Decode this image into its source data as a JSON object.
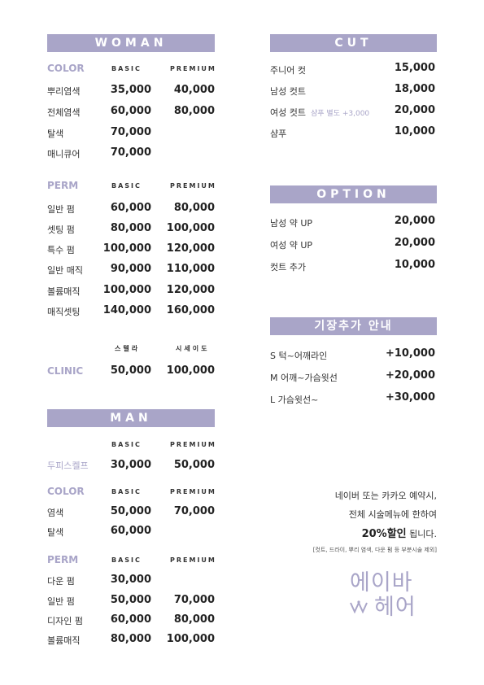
{
  "woman": {
    "title": "WOMAN",
    "col_basic": "BASIC",
    "col_premium": "PREMIUM",
    "color": {
      "label": "COLOR",
      "rows": [
        {
          "name": "뿌리염색",
          "basic": "35,000",
          "premium": "40,000"
        },
        {
          "name": "전체염색",
          "basic": "60,000",
          "premium": "80,000"
        },
        {
          "name": "탈색",
          "basic": "70,000",
          "premium": ""
        },
        {
          "name": "매니큐어",
          "basic": "70,000",
          "premium": ""
        }
      ]
    },
    "perm": {
      "label": "PERM",
      "rows": [
        {
          "name": "일반 펌",
          "basic": "60,000",
          "premium": "80,000"
        },
        {
          "name": "셋팅 펌",
          "basic": "80,000",
          "premium": "100,000"
        },
        {
          "name": "특수 펌",
          "basic": "100,000",
          "premium": "120,000"
        },
        {
          "name": "일반 매직",
          "basic": "90,000",
          "premium": "110,000"
        },
        {
          "name": "볼륨매직",
          "basic": "100,000",
          "premium": "120,000"
        },
        {
          "name": "매직셋팅",
          "basic": "140,000",
          "premium": "160,000"
        }
      ]
    },
    "clinic": {
      "label": "CLINIC",
      "col1": "스텔라",
      "col2": "시세이도",
      "price1": "50,000",
      "price2": "100,000"
    }
  },
  "man": {
    "title": "MAN",
    "col_basic": "BASIC",
    "col_premium": "PREMIUM",
    "scalp": {
      "name": "두피스켈프",
      "basic": "30,000",
      "premium": "50,000"
    },
    "color": {
      "label": "COLOR",
      "rows": [
        {
          "name": "염색",
          "basic": "50,000",
          "premium": "70,000"
        },
        {
          "name": "탈색",
          "basic": "60,000",
          "premium": ""
        }
      ]
    },
    "perm": {
      "label": "PERM",
      "rows": [
        {
          "name": "다운 펌",
          "basic": "30,000",
          "premium": ""
        },
        {
          "name": "일반 펌",
          "basic": "50,000",
          "premium": "70,000"
        },
        {
          "name": "디자인 펌",
          "basic": "60,000",
          "premium": "80,000"
        },
        {
          "name": "볼륨매직",
          "basic": "80,000",
          "premium": "100,000"
        }
      ]
    }
  },
  "cut": {
    "title": "CUT",
    "rows": [
      {
        "name": "주니어 컷",
        "note": "",
        "price": "15,000"
      },
      {
        "name": "남성 컷트",
        "note": "",
        "price": "18,000"
      },
      {
        "name": "여성 컷트",
        "note": "샴푸 별도 +3,000",
        "price": "20,000"
      },
      {
        "name": "샴푸",
        "note": "",
        "price": "10,000"
      }
    ]
  },
  "option": {
    "title": "OPTION",
    "rows": [
      {
        "name": "남성 약 UP",
        "price": "20,000"
      },
      {
        "name": "여성 약 UP",
        "price": "20,000"
      },
      {
        "name": "컷트 추가",
        "price": "10,000"
      }
    ]
  },
  "length": {
    "title": "기장추가 안내",
    "rows": [
      {
        "name": "S 턱~어깨라인",
        "price": "+10,000"
      },
      {
        "name": "M 어깨~가슴윗선",
        "price": "+20,000"
      },
      {
        "name": "L 가슴윗선~",
        "price": "+30,000"
      }
    ]
  },
  "promo": {
    "line1": "네이버 또는 카카오 예약시,",
    "line2": "전체 시술메뉴에 한하여",
    "highlight": "20%할인",
    "line3_rest": " 됩니다.",
    "footnote": "[컷트, 드라이, 뿌리 염색, 다운 펌 등 부분시술 제외]"
  },
  "logo": {
    "line1": "에이바",
    "line2": "헤어",
    "color": "#a9a5c8"
  },
  "colors": {
    "accent": "#a9a5c8",
    "text": "#2b2b2b"
  }
}
